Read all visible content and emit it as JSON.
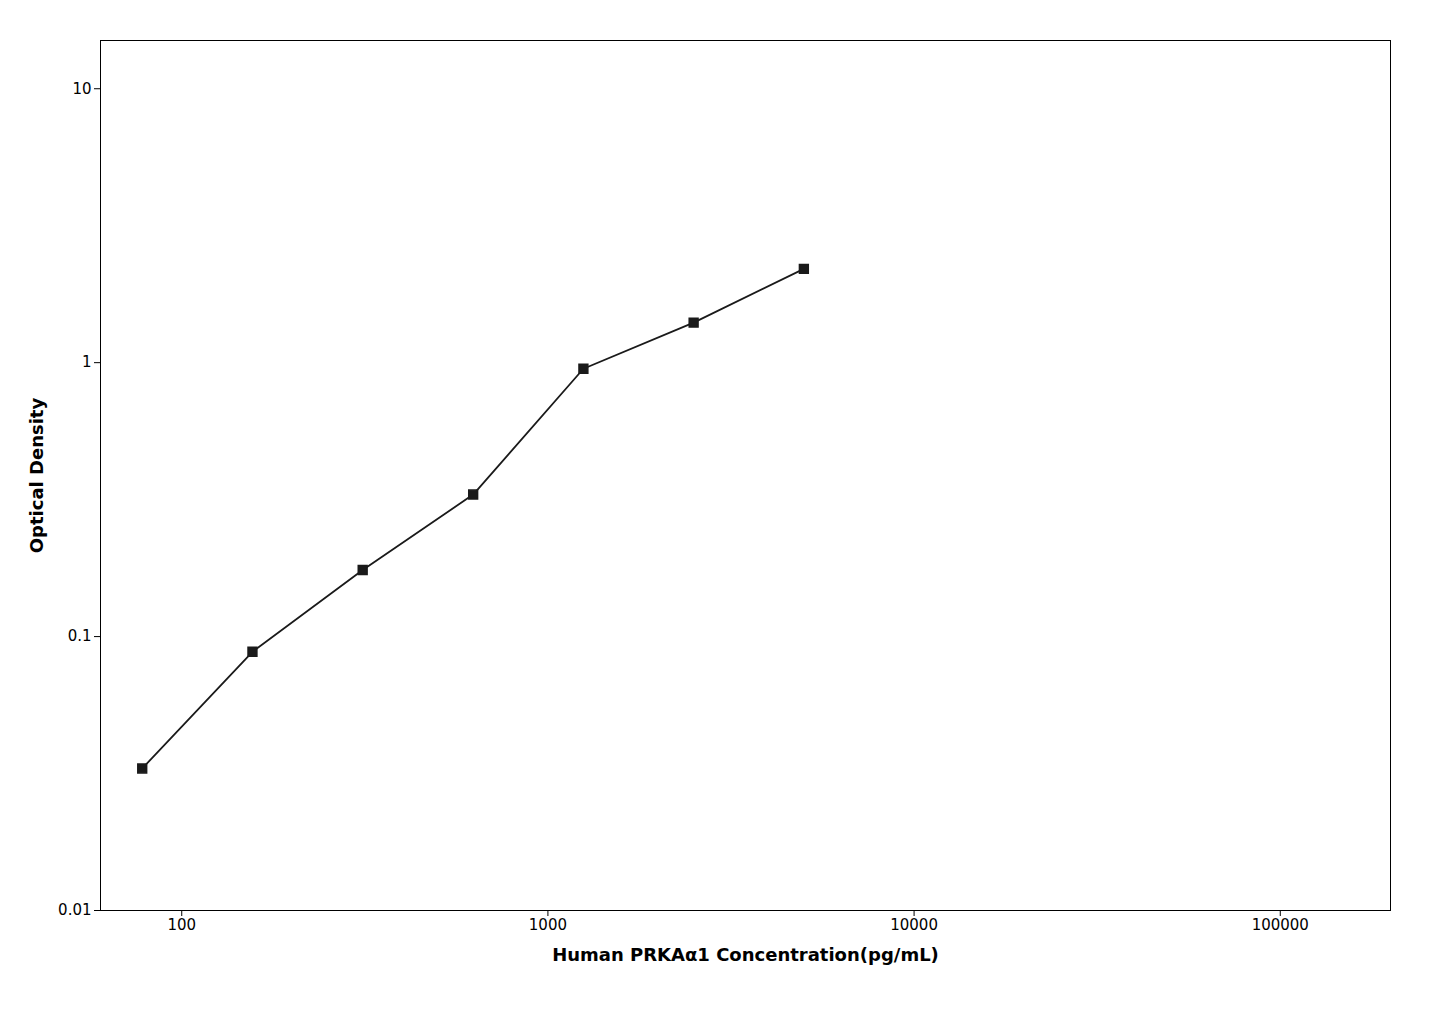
{
  "chart_data": {
    "type": "line",
    "x": [
      78,
      156,
      312,
      625,
      1250,
      2500,
      5000
    ],
    "values": [
      0.033,
      0.088,
      0.175,
      0.33,
      0.95,
      1.4,
      2.2
    ],
    "xlabel": "Human PRKAα1 Concentration(pg/mL)",
    "ylabel": "Optical Density",
    "xlim": [
      60,
      200000
    ],
    "ylim": [
      0.01,
      15
    ],
    "xticks": [
      100,
      1000,
      10000,
      100000
    ],
    "yticks": [
      0.01,
      0.1,
      1,
      10
    ],
    "log": true,
    "grid": false,
    "color": "#1a1a1a",
    "marker": "square"
  }
}
